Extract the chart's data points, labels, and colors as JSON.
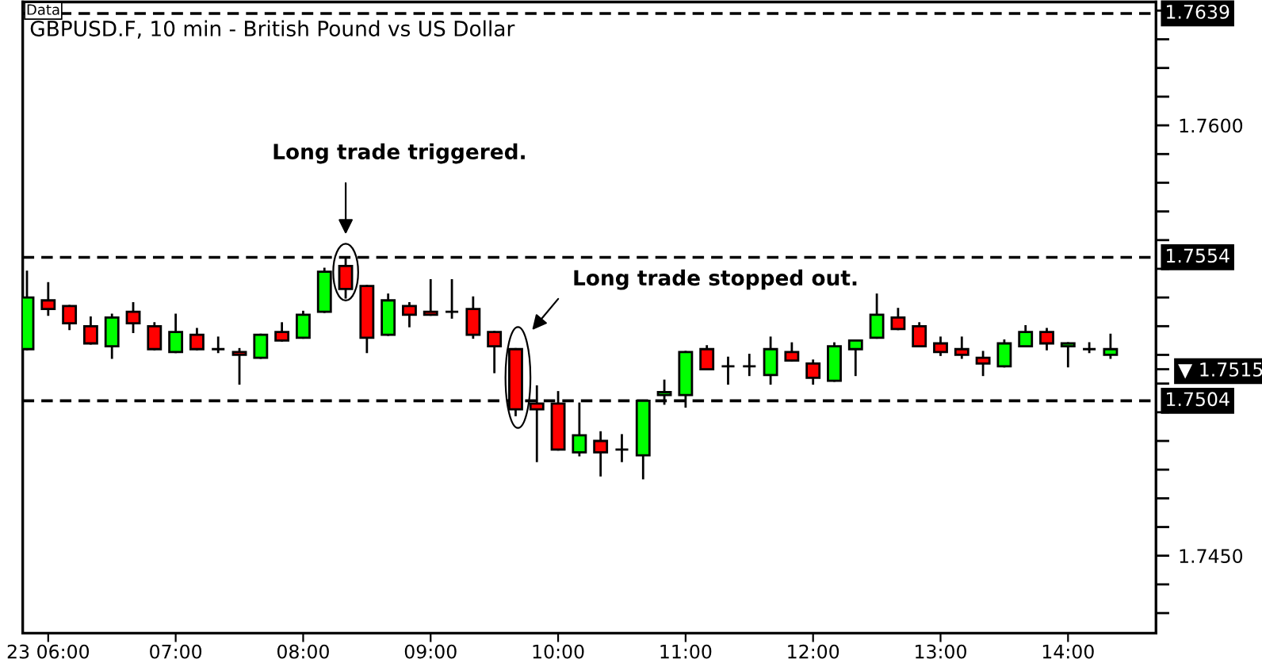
{
  "chart_data": {
    "type": "candlestick",
    "title": "GBPUSD.F, 10 min - British Pound vs US Dollar",
    "x": [
      5.8333,
      6,
      6.1667,
      6.3333,
      6.5,
      6.6667,
      6.8333,
      7,
      7.1667,
      7.3333,
      7.5,
      7.6667,
      7.8333,
      8,
      8.1667,
      8.3333,
      8.5,
      8.6667,
      8.8333,
      9,
      9.1667,
      9.3333,
      9.5,
      9.6667,
      9.8333,
      10,
      10.1667,
      10.3333,
      10.5,
      10.6667,
      10.8333,
      11,
      11.1667,
      11.3333,
      11.5,
      11.6667,
      11.8333,
      12,
      12.1667,
      12.3333,
      12.5,
      12.6667,
      12.8333,
      13,
      13.1667,
      13.3333,
      13.5,
      13.6667,
      13.8333,
      14,
      14.1667,
      14.3333
    ],
    "ohlc": [
      [
        1.7522,
        1.7549,
        1.7522,
        1.754
      ],
      [
        1.7539,
        1.7545,
        1.7534,
        1.7536
      ],
      [
        1.7537,
        1.7537,
        1.7529,
        1.7531
      ],
      [
        1.753,
        1.7533,
        1.7524,
        1.7524
      ],
      [
        1.7523,
        1.7534,
        1.7519,
        1.7533
      ],
      [
        1.7535,
        1.7538,
        1.7528,
        1.7531
      ],
      [
        1.753,
        1.7531,
        1.7522,
        1.7522
      ],
      [
        1.7521,
        1.7534,
        1.7521,
        1.7528
      ],
      [
        1.7527,
        1.7529,
        1.7522,
        1.7522
      ],
      [
        1.7522,
        1.7526,
        1.7521,
        1.7522
      ],
      [
        1.7521,
        1.7522,
        1.751,
        1.752
      ],
      [
        1.7519,
        1.7527,
        1.7519,
        1.7527
      ],
      [
        1.7528,
        1.7531,
        1.7525,
        1.7525
      ],
      [
        1.7526,
        1.7535,
        1.7526,
        1.7534
      ],
      [
        1.7535,
        1.755,
        1.7535,
        1.7549
      ],
      [
        1.7551,
        1.7554,
        1.754,
        1.7543
      ],
      [
        1.7544,
        1.7544,
        1.7521,
        1.7526
      ],
      [
        1.7527,
        1.7541,
        1.7527,
        1.7539
      ],
      [
        1.7537,
        1.7538,
        1.753,
        1.7534
      ],
      [
        1.7535,
        1.7546,
        1.7534,
        1.7534
      ],
      [
        1.7535,
        1.7546,
        1.7533,
        1.7535
      ],
      [
        1.7536,
        1.754,
        1.7526,
        1.7527
      ],
      [
        1.7528,
        1.7528,
        1.7514,
        1.7523
      ],
      [
        1.7522,
        1.7522,
        1.7499,
        1.7501
      ],
      [
        1.7503,
        1.7509,
        1.7483,
        1.7501
      ],
      [
        1.7503,
        1.7507,
        1.7487,
        1.7487
      ],
      [
        1.7486,
        1.7503,
        1.7485,
        1.7492
      ],
      [
        1.749,
        1.7493,
        1.7478,
        1.7486
      ],
      [
        1.7487,
        1.7492,
        1.7483,
        1.7487
      ],
      [
        1.7485,
        1.7504,
        1.7477,
        1.7504
      ],
      [
        1.7506,
        1.7511,
        1.7503,
        1.7507
      ],
      [
        1.7506,
        1.7521,
        1.7502,
        1.7521
      ],
      [
        1.7522,
        1.7523,
        1.7515,
        1.7515
      ],
      [
        1.7516,
        1.7519,
        1.751,
        1.7516
      ],
      [
        1.7516,
        1.752,
        1.7513,
        1.7516
      ],
      [
        1.7513,
        1.7526,
        1.751,
        1.7522
      ],
      [
        1.7521,
        1.7524,
        1.7518,
        1.7518
      ],
      [
        1.7517,
        1.7518,
        1.751,
        1.7512
      ],
      [
        1.7511,
        1.7524,
        1.7511,
        1.7523
      ],
      [
        1.7522,
        1.7525,
        1.7513,
        1.7525
      ],
      [
        1.7526,
        1.7541,
        1.7526,
        1.7534
      ],
      [
        1.7533,
        1.7536,
        1.7529,
        1.7529
      ],
      [
        1.753,
        1.7531,
        1.7523,
        1.7523
      ],
      [
        1.7524,
        1.7526,
        1.752,
        1.7521
      ],
      [
        1.7522,
        1.7526,
        1.7519,
        1.752
      ],
      [
        1.7519,
        1.7521,
        1.7513,
        1.7517
      ],
      [
        1.7516,
        1.7525,
        1.7516,
        1.7524
      ],
      [
        1.7523,
        1.753,
        1.7523,
        1.7528
      ],
      [
        1.7528,
        1.7529,
        1.7522,
        1.7524
      ],
      [
        1.7523,
        1.7524,
        1.7516,
        1.7524
      ],
      [
        1.7522,
        1.7524,
        1.7521,
        1.7522
      ],
      [
        1.752,
        1.7527,
        1.7519,
        1.7522
      ]
    ],
    "colors": [
      "#00ff00",
      "#ff0000",
      "#ff0000",
      "#ff0000",
      "#00ff00",
      "#ff0000",
      "#ff0000",
      "#00ff00",
      "#ff0000",
      "#000000",
      "#ff0000",
      "#00ff00",
      "#ff0000",
      "#00ff00",
      "#00ff00",
      "#ff0000",
      "#ff0000",
      "#00ff00",
      "#ff0000",
      "#ff0000",
      "#000000",
      "#ff0000",
      "#ff0000",
      "#ff0000",
      "#ff0000",
      "#ff0000",
      "#00ff00",
      "#ff0000",
      "#000000",
      "#00ff00",
      "#00ff00",
      "#00ff00",
      "#ff0000",
      "#000000",
      "#000000",
      "#00ff00",
      "#ff0000",
      "#ff0000",
      "#00ff00",
      "#00ff00",
      "#00ff00",
      "#ff0000",
      "#ff0000",
      "#ff0000",
      "#ff0000",
      "#ff0000",
      "#00ff00",
      "#00ff00",
      "#ff0000",
      "#00ff00",
      "#000000",
      "#00ff00"
    ],
    "xlim": [
      5.8,
      14.69
    ],
    "xticks": [
      {
        "value": 6,
        "label": "23 06:00"
      },
      {
        "value": 7,
        "label": "07:00"
      },
      {
        "value": 8,
        "label": "08:00"
      },
      {
        "value": 9,
        "label": "09:00"
      },
      {
        "value": 10,
        "label": "10:00"
      },
      {
        "value": 11,
        "label": "11:00"
      },
      {
        "value": 12,
        "label": "12:00"
      },
      {
        "value": 13,
        "label": "13:00"
      },
      {
        "value": 14,
        "label": "14:00"
      }
    ],
    "ylim": [
      1.7423,
      1.7643
    ],
    "yticks": [
      {
        "value": 1.743,
        "label": null
      },
      {
        "value": 1.744,
        "label": null
      },
      {
        "value": 1.745,
        "label": "1.7450"
      },
      {
        "value": 1.746,
        "label": null
      },
      {
        "value": 1.747,
        "label": null
      },
      {
        "value": 1.748,
        "label": null
      },
      {
        "value": 1.749,
        "label": null
      },
      {
        "value": 1.75,
        "label": null
      },
      {
        "value": 1.751,
        "label": null
      },
      {
        "value": 1.7515,
        "label": "▼ 1.7515"
      },
      {
        "value": 1.752,
        "label": null
      },
      {
        "value": 1.753,
        "label": null
      },
      {
        "value": 1.754,
        "label": null
      },
      {
        "value": 1.755,
        "label": null
      },
      {
        "value": 1.756,
        "label": null
      },
      {
        "value": 1.757,
        "label": null
      },
      {
        "value": 1.758,
        "label": null
      },
      {
        "value": 1.759,
        "label": null
      },
      {
        "value": 1.76,
        "label": "1.7600"
      },
      {
        "value": 1.761,
        "label": null
      },
      {
        "value": 1.762,
        "label": null
      },
      {
        "value": 1.763,
        "label": null
      },
      {
        "value": 1.764,
        "label": null
      }
    ],
    "ref_lines": [
      {
        "axis": "y",
        "value": 1.7639,
        "label": "1.7639",
        "color": "#000000",
        "line_style": "dashed"
      },
      {
        "axis": "y",
        "value": 1.7554,
        "label": "1.7554",
        "color": "#000000",
        "line_style": "dashed"
      },
      {
        "axis": "y",
        "value": 1.7504,
        "label": "1.7504",
        "color": "#000000",
        "line_style": "dashed"
      }
    ],
    "annotations": [
      "Data",
      "Long trade triggered.",
      "Long trade stopped out."
    ],
    "grid": false,
    "legend": false
  }
}
